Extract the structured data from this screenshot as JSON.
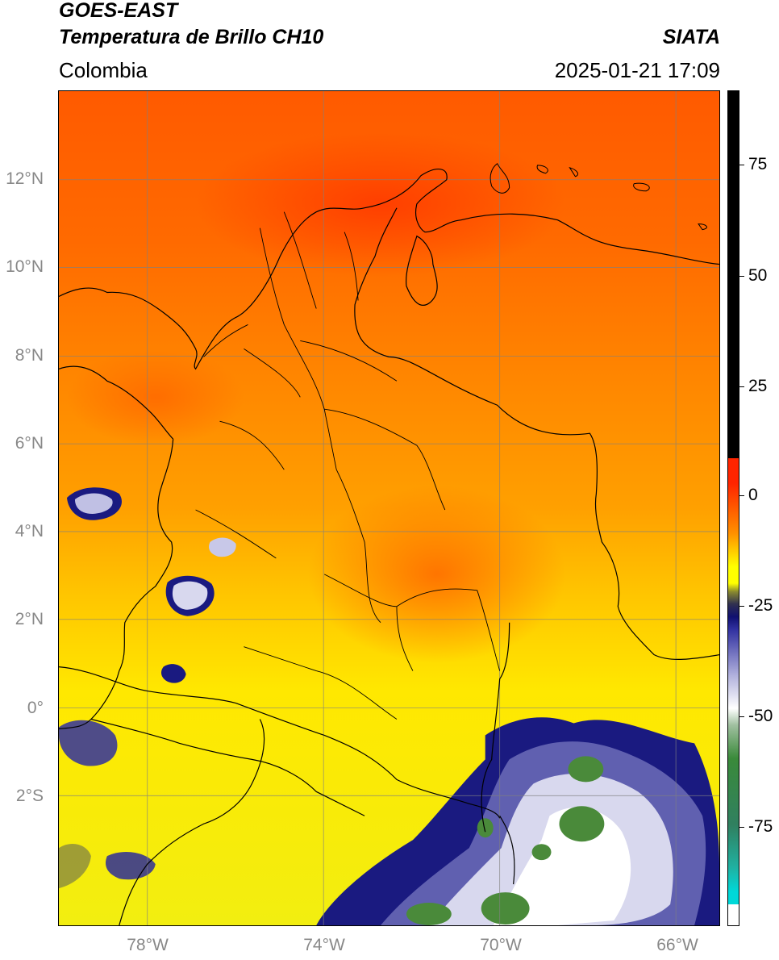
{
  "header": {
    "satellite": "GOES-EAST",
    "product": "Temperatura de Brillo CH10",
    "region": "Colombia",
    "source": "SIATA",
    "datetime": "2025-01-21 17:09"
  },
  "map": {
    "lat_labels": [
      "12°N",
      "10°N",
      "8°N",
      "6°N",
      "4°N",
      "2°N",
      "0°",
      "2°S"
    ],
    "lon_labels": [
      "78°W",
      "74°W",
      "70°W",
      "66°W"
    ],
    "lat_range": [
      -4.9,
      14.0
    ],
    "lon_range": [
      -80.0,
      -65.0
    ],
    "gridlines": true
  },
  "colorbar": {
    "tick_labels": [
      "75",
      "50",
      "25",
      "0",
      "-25",
      "-50",
      "-75"
    ],
    "range": [
      -95,
      90
    ],
    "colors": {
      "black": "#000000",
      "red": "#ff2400",
      "orange": "#ff9000",
      "yellow": "#ffff00",
      "navy": "#101070",
      "white": "#ffffff",
      "green": "#3a8a3a",
      "cyan": "#00d8d8"
    }
  }
}
